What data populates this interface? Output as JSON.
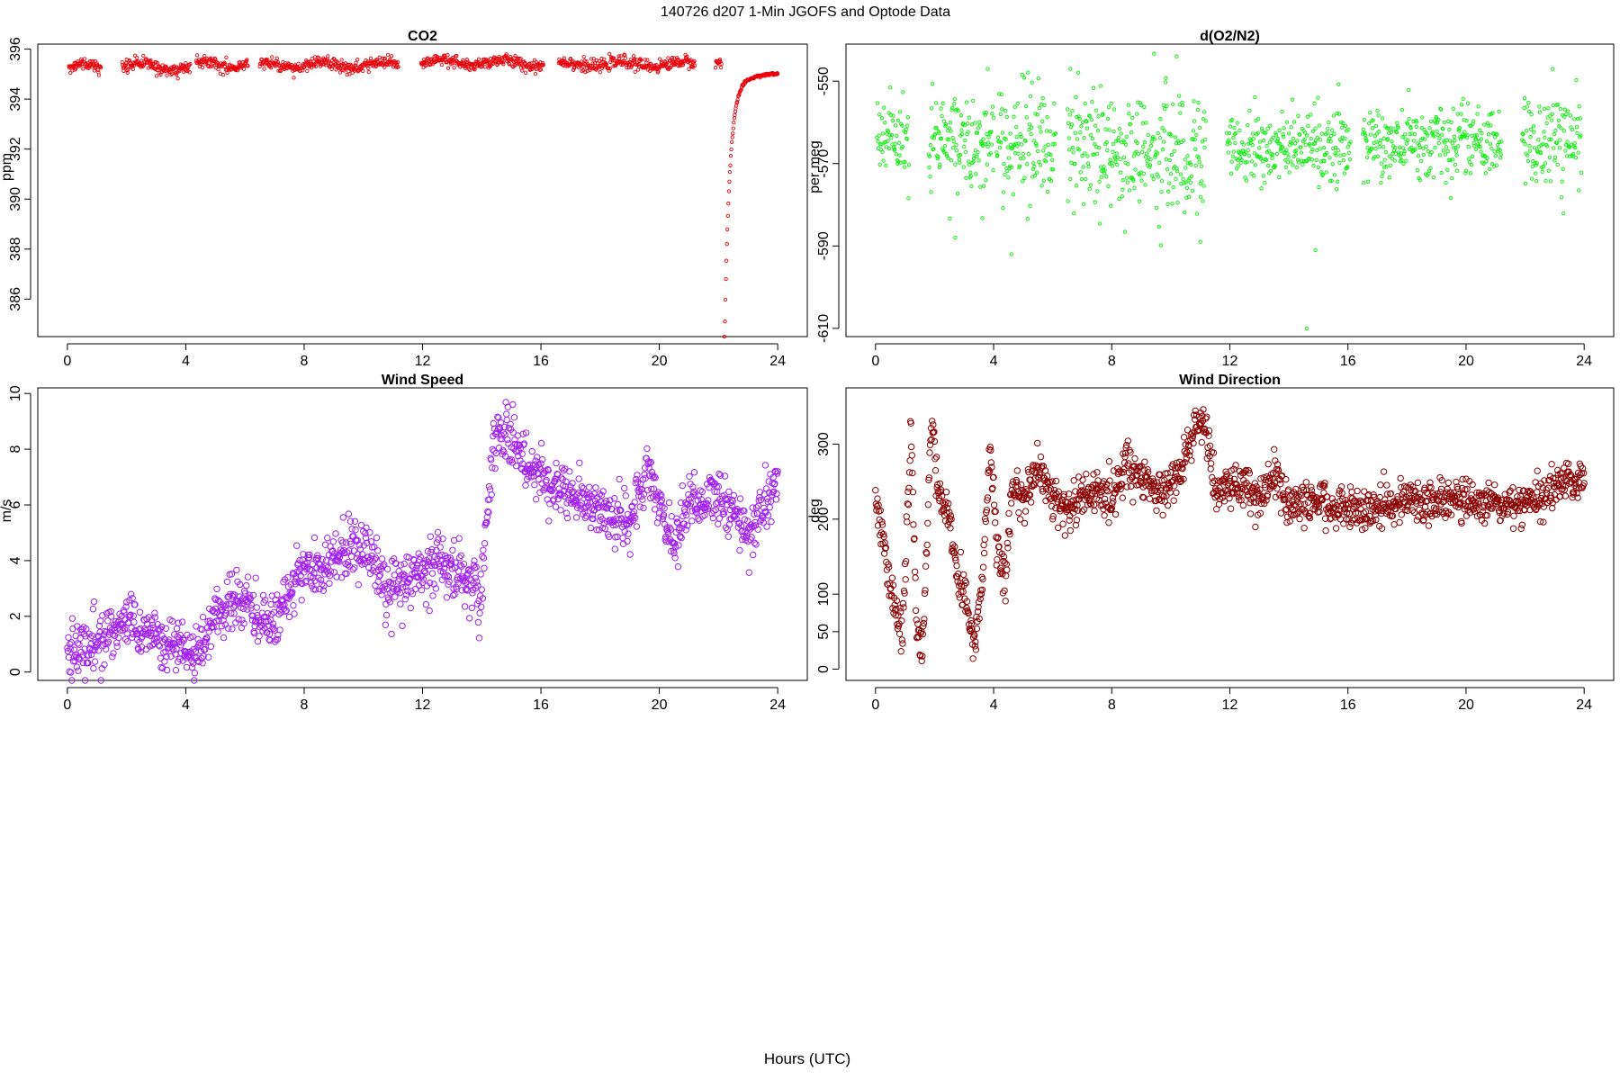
{
  "page": {
    "title": "140726   d207   1-Min  JGOFS and Optode Data",
    "xlabel": "Hours (UTC)"
  },
  "chart_data": [
    {
      "id": "co2",
      "type": "scatter",
      "title": "CO2",
      "xlabel": "",
      "ylabel": "ppm",
      "xlim": [
        -1,
        25
      ],
      "ylim": [
        384.5,
        396.2
      ],
      "xticks": [
        0,
        4,
        8,
        12,
        16,
        20,
        24
      ],
      "yticks": [
        386,
        388,
        390,
        392,
        394,
        396
      ],
      "color": "#e8000b",
      "marker": "small-circle",
      "series": [
        {
          "segments": [
            {
              "start": 0.05,
              "end": 1.15,
              "base": 395.3,
              "noise": 0.12,
              "wave": 0.1
            },
            {
              "start": 1.85,
              "end": 4.15,
              "base": 395.3,
              "noise": 0.12,
              "wave": 0.15
            },
            {
              "start": 4.35,
              "end": 6.1,
              "base": 395.4,
              "noise": 0.12,
              "wave": 0.15
            },
            {
              "start": 6.5,
              "end": 11.2,
              "base": 395.35,
              "noise": 0.12,
              "wave": 0.12
            },
            {
              "start": 11.95,
              "end": 16.1,
              "base": 395.45,
              "noise": 0.12,
              "wave": 0.12
            },
            {
              "start": 16.6,
              "end": 21.2,
              "base": 395.4,
              "noise": 0.12,
              "wave": 0.1
            },
            {
              "start": 21.9,
              "end": 22.1,
              "base": 395.45,
              "noise": 0.08,
              "wave": 0.0
            }
          ],
          "recovery": {
            "start": 22.2,
            "end": 24.0,
            "min": 384.7,
            "final": 395.1
          }
        }
      ]
    },
    {
      "id": "o2n2",
      "type": "scatter",
      "title": "d(O2/N2)",
      "xlabel": "",
      "ylabel": "per meg",
      "xlim": [
        -1,
        25
      ],
      "ylim": [
        -612,
        -541
      ],
      "xticks": [
        0,
        4,
        8,
        12,
        16,
        20,
        24
      ],
      "yticks": [
        -550,
        -570,
        -590,
        -610
      ],
      "color": "#00ee00",
      "marker": "small-circle",
      "series": [
        {
          "segments": [
            {
              "start": 0.05,
              "end": 1.15,
              "base": -563,
              "noise": 5
            },
            {
              "start": 1.8,
              "end": 4.0,
              "base": -565,
              "noise": 6
            },
            {
              "start": 4.1,
              "end": 6.1,
              "base": -565,
              "noise": 7
            },
            {
              "start": 6.5,
              "end": 11.2,
              "base": -567,
              "noise": 7
            },
            {
              "start": 11.9,
              "end": 16.1,
              "base": -566,
              "noise": 4
            },
            {
              "start": 16.5,
              "end": 21.2,
              "base": -565,
              "noise": 4
            },
            {
              "start": 21.9,
              "end": 23.9,
              "base": -565,
              "noise": 6
            }
          ],
          "outliers": [
            [
              4.6,
              -592
            ],
            [
              10.2,
              -544
            ],
            [
              14.6,
              -610
            ],
            [
              3.8,
              -547
            ],
            [
              6.6,
              -547
            ],
            [
              2.7,
              -588
            ],
            [
              11.0,
              -589
            ],
            [
              14.9,
              -591
            ]
          ]
        }
      ]
    },
    {
      "id": "wspd",
      "type": "scatter",
      "title": "Wind Speed",
      "xlabel": "",
      "ylabel": "m/s",
      "xlim": [
        -1,
        25
      ],
      "ylim": [
        -0.3,
        10.2
      ],
      "xticks": [
        0,
        4,
        8,
        12,
        16,
        20,
        24
      ],
      "yticks": [
        0,
        2,
        4,
        6,
        8,
        10
      ],
      "color": "#a020f0",
      "marker": "open-circle",
      "series": [
        {
          "trend": [
            [
              0,
              0.8
            ],
            [
              1.0,
              1.0
            ],
            [
              2.0,
              1.8
            ],
            [
              3.0,
              1.2
            ],
            [
              4.3,
              0.6
            ],
            [
              5.0,
              2.0
            ],
            [
              6.0,
              2.5
            ],
            [
              7.0,
              1.6
            ],
            [
              7.8,
              3.5
            ],
            [
              9.0,
              4.0
            ],
            [
              10.0,
              4.6
            ],
            [
              10.8,
              3.0
            ],
            [
              11.5,
              3.2
            ],
            [
              12.5,
              3.9
            ],
            [
              13.8,
              3.2
            ],
            [
              13.9,
              1.9
            ],
            [
              14.4,
              8.5
            ],
            [
              15.0,
              8.3
            ],
            [
              16.0,
              7.0
            ],
            [
              17.0,
              6.5
            ],
            [
              18.0,
              5.8
            ],
            [
              19.0,
              5.3
            ],
            [
              19.6,
              7.2
            ],
            [
              20.5,
              4.6
            ],
            [
              21.0,
              6.2
            ],
            [
              22.0,
              6.2
            ],
            [
              23.0,
              5.0
            ],
            [
              24.0,
              6.8
            ]
          ],
          "noise": 0.5
        }
      ]
    },
    {
      "id": "wdir",
      "type": "scatter",
      "title": "Wind Direction",
      "xlabel": "",
      "ylabel": "deg",
      "xlim": [
        -1,
        25
      ],
      "ylim": [
        -15,
        375
      ],
      "xticks": [
        0,
        4,
        8,
        12,
        16,
        20,
        24
      ],
      "yticks": [
        0,
        50,
        100,
        200,
        300
      ],
      "color": "#8b0000",
      "marker": "open-circle",
      "series": [
        {
          "trend": [
            [
              0,
              240
            ],
            [
              0.3,
              160
            ],
            [
              0.6,
              90
            ],
            [
              0.9,
              45
            ],
            [
              1.1,
              230
            ],
            [
              1.2,
              330
            ],
            [
              1.4,
              40
            ],
            [
              1.6,
              30
            ],
            [
              1.9,
              340
            ],
            [
              2.1,
              240
            ],
            [
              2.5,
              200
            ],
            [
              2.8,
              120
            ],
            [
              3.0,
              100
            ],
            [
              3.2,
              60
            ],
            [
              3.4,
              40
            ],
            [
              3.6,
              120
            ],
            [
              3.9,
              300
            ],
            [
              4.1,
              160
            ],
            [
              4.4,
              120
            ],
            [
              4.6,
              240
            ],
            [
              5.0,
              230
            ],
            [
              5.5,
              270
            ],
            [
              6.0,
              230
            ],
            [
              6.5,
              210
            ],
            [
              7.0,
              230
            ],
            [
              7.5,
              240
            ],
            [
              8.0,
              225
            ],
            [
              8.5,
              280
            ],
            [
              9.0,
              250
            ],
            [
              9.5,
              240
            ],
            [
              10.0,
              240
            ],
            [
              10.5,
              280
            ],
            [
              10.9,
              335
            ],
            [
              11.2,
              325
            ],
            [
              11.5,
              240
            ],
            [
              12.0,
              240
            ],
            [
              12.5,
              250
            ],
            [
              13.0,
              225
            ],
            [
              13.5,
              260
            ],
            [
              13.8,
              230
            ],
            [
              14.0,
              220
            ],
            [
              15.0,
              225
            ],
            [
              16.0,
              212
            ],
            [
              17.0,
              218
            ],
            [
              18.0,
              222
            ],
            [
              19.0,
              222
            ],
            [
              19.5,
              230
            ],
            [
              20.0,
              222
            ],
            [
              21.0,
              222
            ],
            [
              22.0,
              220
            ],
            [
              22.5,
              232
            ],
            [
              23.0,
              240
            ],
            [
              23.5,
              255
            ],
            [
              24.0,
              250
            ]
          ],
          "noise": 14
        }
      ]
    }
  ]
}
